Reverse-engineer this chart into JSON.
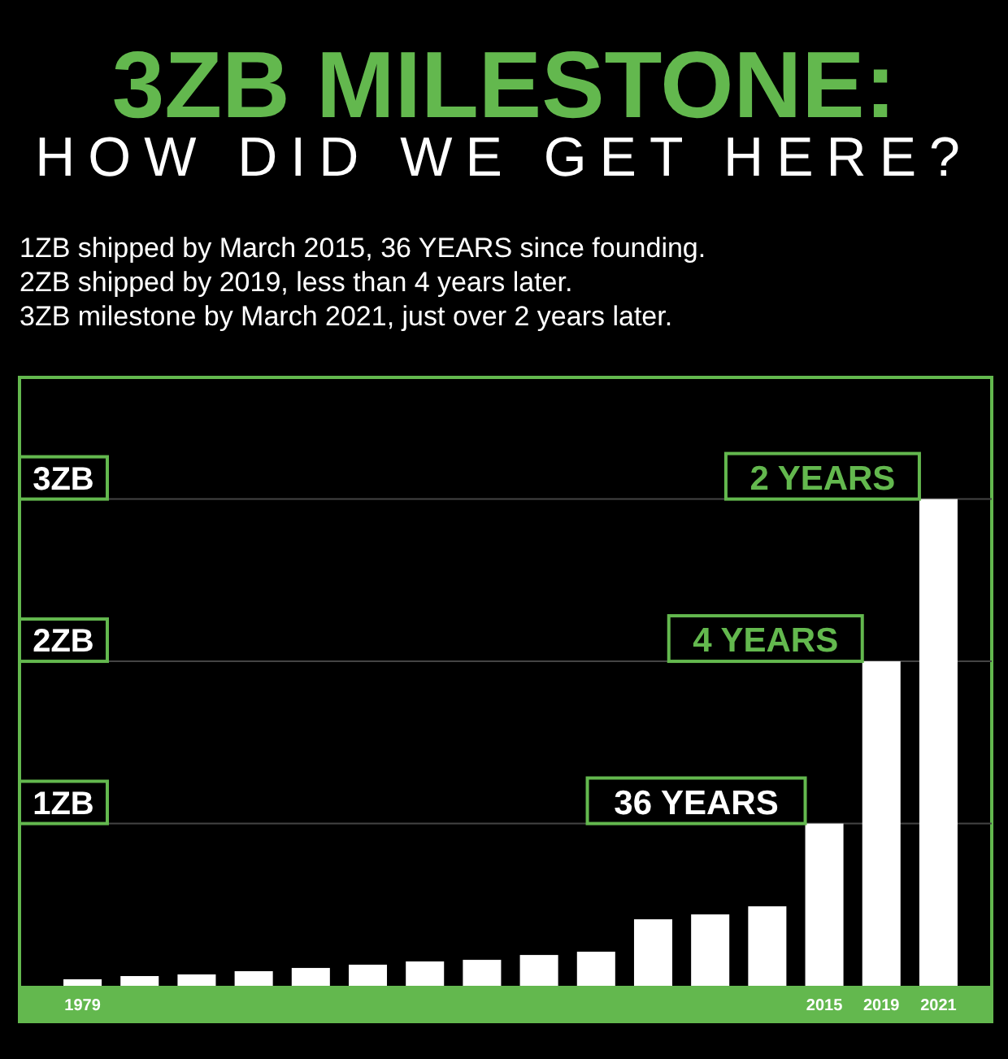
{
  "chart_data": {
    "type": "bar",
    "title": "3ZB MILESTONE:",
    "subtitle": "HOW DID WE GET HERE?",
    "annotations": [
      "1ZB shipped by March 2015, 36 YEARS since founding.",
      "2ZB shipped by 2019, less than 4 years later.",
      "3ZB milestone by March 2021, just over 2 years later.",
      {
        "text": "36 YEARS",
        "x": "2015",
        "y": 1
      },
      {
        "text": "4 YEARS",
        "x": "2019",
        "y": 2
      },
      {
        "text": "2 YEARS",
        "x": "2021",
        "y": 3
      }
    ],
    "categories": [
      "1979",
      null,
      null,
      null,
      null,
      null,
      null,
      null,
      null,
      null,
      null,
      null,
      null,
      "2015",
      "2019",
      "2021"
    ],
    "values": [
      0.04,
      0.06,
      0.07,
      0.09,
      0.11,
      0.13,
      0.15,
      0.16,
      0.19,
      0.21,
      0.41,
      0.44,
      0.49,
      1,
      2,
      3
    ],
    "color": "#ffffff",
    "ylim": [
      0,
      3.75
    ],
    "yticks": [
      {
        "value": 1,
        "label": "1ZB"
      },
      {
        "value": 2,
        "label": "2ZB"
      },
      {
        "value": 3,
        "label": "3ZB"
      }
    ],
    "grid": "y"
  }
}
